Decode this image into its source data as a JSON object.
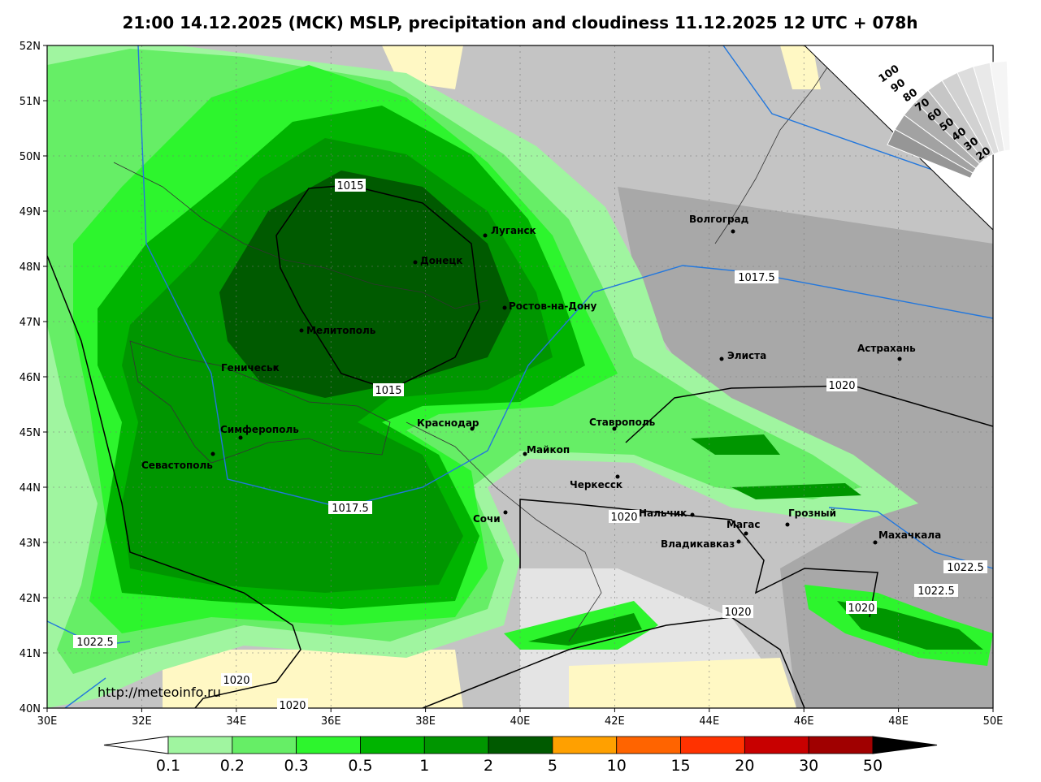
{
  "title": "21:00 14.12.2025 (MCK) MSLP, precipitation and cloudiness 11.12.2025 12 UTC + 078h",
  "axes": {
    "lat_labels": [
      "40N",
      "41N",
      "42N",
      "43N",
      "44N",
      "45N",
      "46N",
      "47N",
      "48N",
      "49N",
      "50N",
      "51N",
      "52N"
    ],
    "lon_labels": [
      "30E",
      "32E",
      "34E",
      "36E",
      "38E",
      "40E",
      "42E",
      "44E",
      "46E",
      "48E",
      "50E"
    ]
  },
  "cities": [
    "Луганск",
    "Донецк",
    "Ростов-на-Дону",
    "Мелитополь",
    "Геничеськ",
    "Волгоград",
    "Элиста",
    "Астрахань",
    "Краснодар",
    "Ставрополь",
    "Симферополь",
    "Севастополь",
    "Майкоп",
    "Черкесск",
    "Сочи",
    "Нальчик",
    "Магас",
    "Грозный",
    "Владикавказ",
    "Махачкала"
  ],
  "isobar_labels": [
    "1015",
    "1015",
    "1017.5",
    "1017.5",
    "1020",
    "1020",
    "1020",
    "1020",
    "1020",
    "1020",
    "1022.5",
    "1022.5",
    "1022.5"
  ],
  "cloudiness_scale": [
    "100",
    "90",
    "80",
    "70",
    "60",
    "50",
    "40",
    "30",
    "20"
  ],
  "precipitation_scale": [
    "0.1",
    "0.2",
    "0.3",
    "0.5",
    "1",
    "2",
    "5",
    "10",
    "15",
    "20",
    "30",
    "50"
  ],
  "source": "http://meteoinfo.ru"
}
